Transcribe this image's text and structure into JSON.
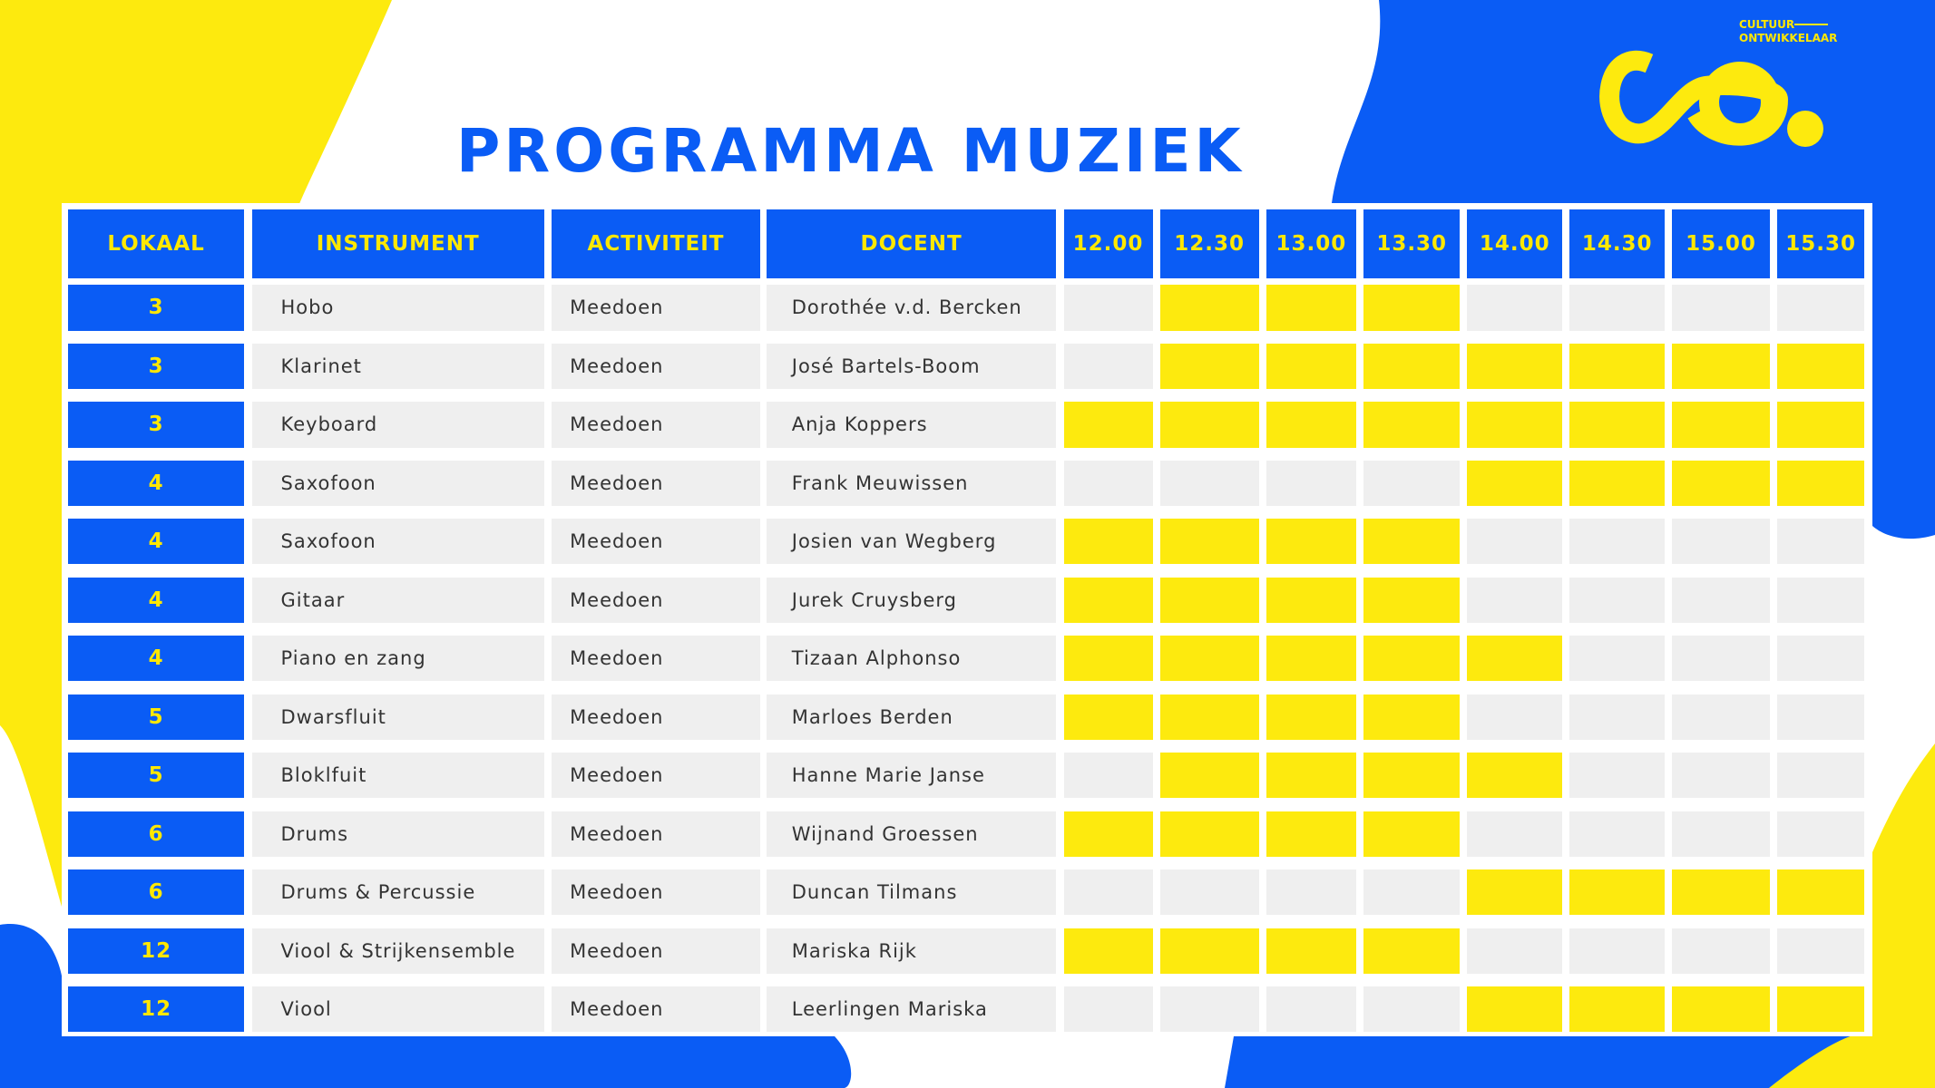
{
  "logo": {
    "line1": "CULTUUR",
    "line2": "ONTWIKKELAAR"
  },
  "header": {
    "title": "PROGRAMMA MUZIEK"
  },
  "table": {
    "columns": [
      "LOKAAL",
      "INSTRUMENT",
      "ACTIVITEIT",
      "DOCENT"
    ],
    "times": [
      "12.00",
      "12.30",
      "13.00",
      "13.30",
      "14.00",
      "14.30",
      "15.00",
      "15.30"
    ],
    "rows": [
      {
        "lokaal": 3,
        "instrument": "Hobo",
        "activiteit": "Meedoen",
        "docent": "Dorothée v.d. Bercken",
        "slots": [
          false,
          true,
          true,
          true,
          false,
          false,
          false,
          false
        ]
      },
      {
        "lokaal": 3,
        "instrument": "Klarinet",
        "activiteit": "Meedoen",
        "docent": "José Bartels-Boom",
        "slots": [
          false,
          true,
          true,
          true,
          true,
          true,
          true,
          true
        ]
      },
      {
        "lokaal": 3,
        "instrument": "Keyboard",
        "activiteit": "Meedoen",
        "docent": "Anja Koppers",
        "slots": [
          true,
          true,
          true,
          true,
          true,
          true,
          true,
          true
        ]
      },
      {
        "lokaal": 4,
        "instrument": "Saxofoon",
        "activiteit": "Meedoen",
        "docent": "Frank Meuwissen",
        "slots": [
          false,
          false,
          false,
          false,
          true,
          true,
          true,
          true
        ]
      },
      {
        "lokaal": 4,
        "instrument": "Saxofoon",
        "activiteit": "Meedoen",
        "docent": "Josien van Wegberg",
        "slots": [
          true,
          true,
          true,
          true,
          false,
          false,
          false,
          false
        ]
      },
      {
        "lokaal": 4,
        "instrument": "Gitaar",
        "activiteit": "Meedoen",
        "docent": "Jurek Cruysberg",
        "slots": [
          true,
          true,
          true,
          true,
          false,
          false,
          false,
          false
        ]
      },
      {
        "lokaal": 4,
        "instrument": "Piano en zang",
        "activiteit": "Meedoen",
        "docent": "Tizaan Alphonso",
        "slots": [
          true,
          true,
          true,
          true,
          true,
          false,
          false,
          false
        ]
      },
      {
        "lokaal": 5,
        "instrument": "Dwarsfluit",
        "activiteit": "Meedoen",
        "docent": "Marloes Berden",
        "slots": [
          true,
          true,
          true,
          true,
          false,
          false,
          false,
          false
        ]
      },
      {
        "lokaal": 5,
        "instrument": "Bloklfuit",
        "activiteit": "Meedoen",
        "docent": "Hanne Marie Janse",
        "slots": [
          false,
          true,
          true,
          true,
          true,
          false,
          false,
          false
        ]
      },
      {
        "lokaal": 6,
        "instrument": "Drums",
        "activiteit": "Meedoen",
        "docent": "Wijnand Groessen",
        "slots": [
          true,
          true,
          true,
          true,
          false,
          false,
          false,
          false
        ]
      },
      {
        "lokaal": 6,
        "instrument": "Drums & Percussie",
        "activiteit": "Meedoen",
        "docent": "Duncan Tilmans",
        "slots": [
          false,
          false,
          false,
          false,
          true,
          true,
          true,
          true
        ]
      },
      {
        "lokaal": 12,
        "instrument": "Viool & Strijkensemble",
        "activiteit": "Meedoen",
        "docent": "Mariska Rijk",
        "slots": [
          true,
          true,
          true,
          true,
          false,
          false,
          false,
          false
        ]
      },
      {
        "lokaal": 12,
        "instrument": "Viool",
        "activiteit": "Meedoen",
        "docent": "Leerlingen Mariska",
        "slots": [
          false,
          false,
          false,
          false,
          true,
          true,
          true,
          true
        ]
      }
    ]
  }
}
